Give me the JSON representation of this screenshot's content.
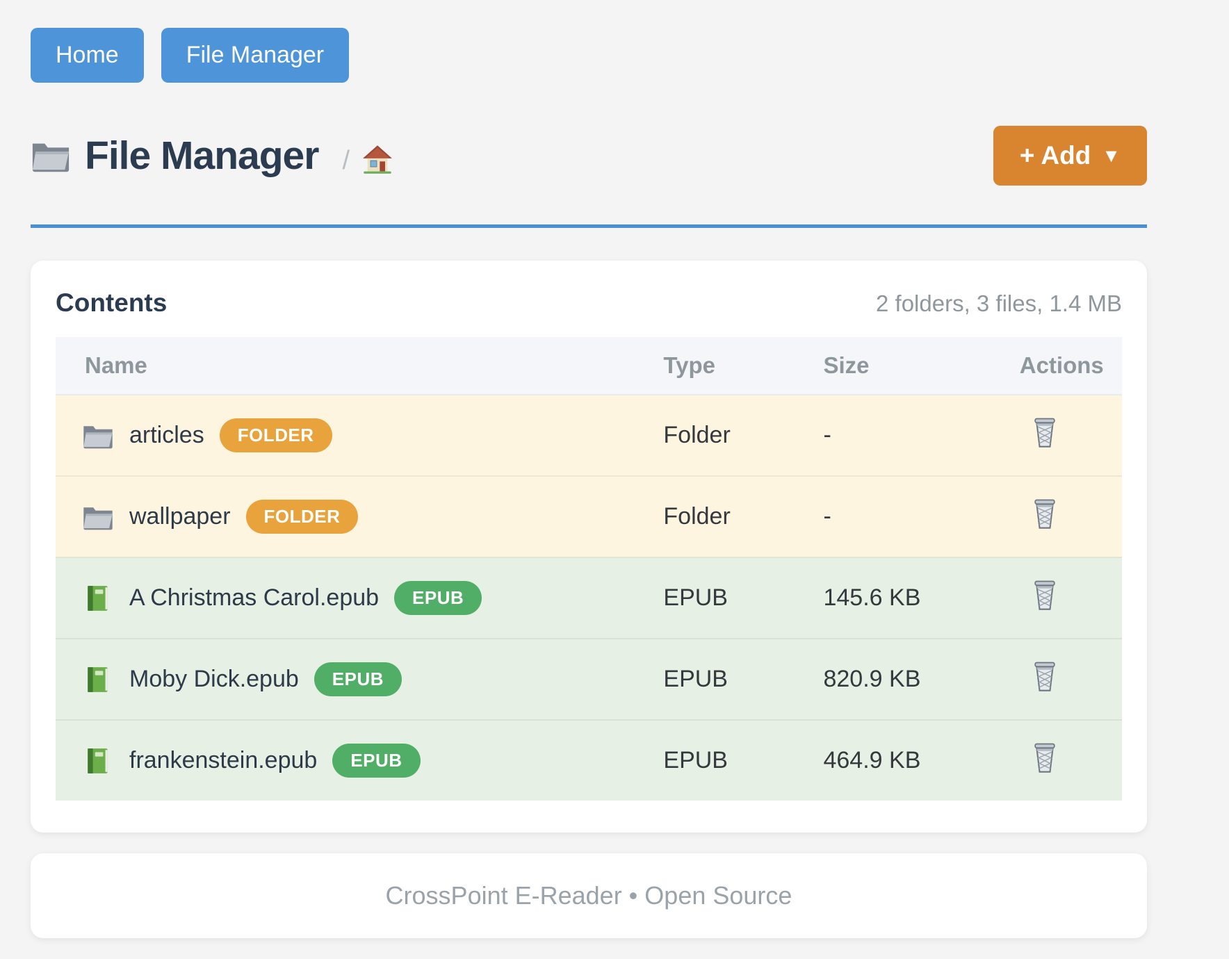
{
  "nav": {
    "buttons": [
      {
        "label": "Home"
      },
      {
        "label": "File Manager"
      }
    ]
  },
  "header": {
    "title": "File Manager",
    "title_icon": "folder-icon",
    "breadcrumb_separator": "/",
    "breadcrumb_home_icon": "house-icon",
    "add_label": "+ Add",
    "add_caret": "▼"
  },
  "contents": {
    "heading": "Contents",
    "summary": "2 folders, 3 files, 1.4 MB",
    "table": {
      "columns": [
        "Name",
        "Type",
        "Size",
        "Actions"
      ],
      "action_icon": "trash-icon",
      "rows": [
        {
          "name": "articles",
          "badge": "FOLDER",
          "type": "Folder",
          "size": "-",
          "kind": "folder"
        },
        {
          "name": "wallpaper",
          "badge": "FOLDER",
          "type": "Folder",
          "size": "-",
          "kind": "folder"
        },
        {
          "name": "A Christmas Carol.epub",
          "badge": "EPUB",
          "type": "EPUB",
          "size": "145.6 KB",
          "kind": "epub"
        },
        {
          "name": "Moby Dick.epub",
          "badge": "EPUB",
          "type": "EPUB",
          "size": "820.9 KB",
          "kind": "epub"
        },
        {
          "name": "frankenstein.epub",
          "badge": "EPUB",
          "type": "EPUB",
          "size": "464.9 KB",
          "kind": "epub"
        }
      ]
    }
  },
  "footer": {
    "text": "CrossPoint E-Reader • Open Source"
  },
  "colors": {
    "page_bg": "#f4f4f5",
    "nav_button_bg": "#4e94d8",
    "add_button_bg": "#d9842f",
    "divider": "#4a90d8",
    "heading_text": "#2c3c50",
    "muted_text": "#8e979c",
    "row_folder_bg": "#fdf5e0",
    "row_epub_bg": "#e6f0e4",
    "badge_folder_bg": "#e8a33c",
    "badge_epub_bg": "#50ae67",
    "footer_text": "#9aa3a9"
  }
}
